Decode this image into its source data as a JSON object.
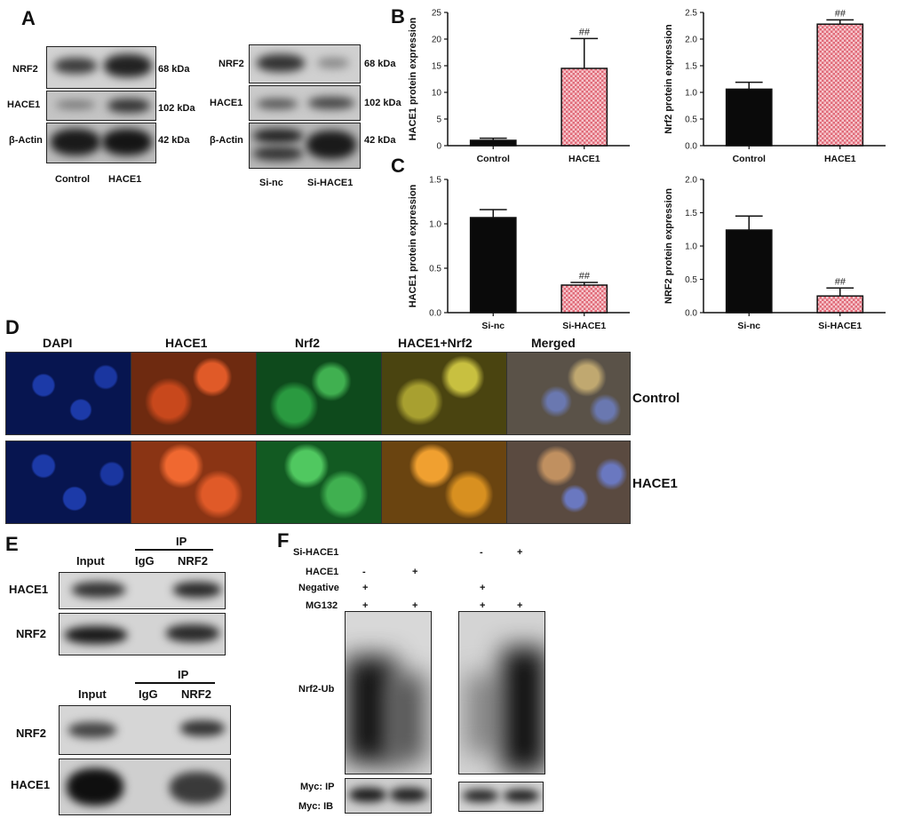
{
  "panels": {
    "a": "A",
    "b": "B",
    "c": "C",
    "d": "D",
    "e": "E",
    "f": "F"
  },
  "panel_a": {
    "left": {
      "rows": [
        "NRF2",
        "HACE1",
        "β-Actin"
      ],
      "sizes": [
        "68 kDa",
        "102 kDa",
        "42 kDa"
      ],
      "lanes": [
        "Control",
        "HACE1"
      ]
    },
    "right": {
      "rows": [
        "NRF2",
        "HACE1",
        "β-Actin"
      ],
      "sizes": [
        "68 kDa",
        "102 kDa",
        "42 kDa"
      ],
      "lanes": [
        "Si-nc",
        "Si-HACE1"
      ]
    }
  },
  "chart_data": [
    {
      "type": "bar",
      "categories": [
        "Control",
        "HACE1"
      ],
      "values": [
        1.0,
        14.5
      ],
      "errors": [
        0.4,
        5.6
      ],
      "annotations": [
        "",
        "##"
      ],
      "ylabel": "HACE1 protein expression",
      "ylim": [
        0,
        25
      ],
      "yticks": [
        "0",
        "5",
        "10",
        "15",
        "20",
        "25"
      ],
      "colors": [
        "#0a0a0a",
        "#e06a78"
      ]
    },
    {
      "type": "bar",
      "categories": [
        "Control",
        "HACE1"
      ],
      "values": [
        1.06,
        2.28
      ],
      "errors": [
        0.13,
        0.08
      ],
      "annotations": [
        "",
        "##"
      ],
      "ylabel": "Nrf2 protein expression",
      "ylim": [
        0,
        2.5
      ],
      "yticks": [
        "0.0",
        "0.5",
        "1.0",
        "1.5",
        "2.0",
        "2.5"
      ],
      "colors": [
        "#0a0a0a",
        "#e06a78"
      ]
    },
    {
      "type": "bar",
      "categories": [
        "Si-nc",
        "Si-HACE1"
      ],
      "values": [
        1.07,
        0.31
      ],
      "errors": [
        0.09,
        0.03
      ],
      "annotations": [
        "",
        "##"
      ],
      "ylabel": "HACE1 protein expression",
      "ylim": [
        0,
        1.5
      ],
      "yticks": [
        "0.0",
        "0.5",
        "1.0",
        "1.5"
      ],
      "colors": [
        "#0a0a0a",
        "#e06a78"
      ]
    },
    {
      "type": "bar",
      "categories": [
        "Si-nc",
        "Si-HACE1"
      ],
      "values": [
        1.24,
        0.25
      ],
      "errors": [
        0.21,
        0.12
      ],
      "annotations": [
        "",
        "##"
      ],
      "ylabel": "NRF2 protein expression",
      "ylim": [
        0,
        2.0
      ],
      "yticks": [
        "0.0",
        "0.5",
        "1.0",
        "1.5",
        "2.0"
      ],
      "colors": [
        "#0a0a0a",
        "#e06a78"
      ]
    }
  ],
  "panel_d": {
    "columns": [
      "DAPI",
      "HACE1",
      "Nrf2",
      "HACE1+Nrf2",
      "Merged"
    ],
    "rows": [
      "Control",
      "HACE1"
    ],
    "colors": {
      "dapi": "#0c1e78",
      "hace1": "#b8401a",
      "nrf2": "#1e8c34",
      "overlay": "#9a8a22",
      "merged": "#6a6a6a"
    }
  },
  "panel_e": {
    "top": {
      "ip": "IP",
      "lanes": [
        "Input",
        "IgG",
        "NRF2"
      ],
      "rows": [
        "HACE1",
        "NRF2"
      ]
    },
    "bottom": {
      "ip": "IP",
      "lanes": [
        "Input",
        "IgG",
        "NRF2"
      ],
      "rows": [
        "NRF2",
        "HACE1"
      ]
    }
  },
  "panel_f": {
    "conditions": [
      {
        "label": "Si-HACE1",
        "marks": [
          "",
          "",
          "-",
          "+"
        ]
      },
      {
        "label": "HACE1",
        "marks": [
          "-",
          "+",
          "",
          ""
        ]
      },
      {
        "label": "Negative",
        "marks": [
          "+",
          "",
          "+",
          ""
        ]
      },
      {
        "label": "MG132",
        "marks": [
          "+",
          "+",
          "+",
          "+"
        ]
      }
    ],
    "ub_label": "Nrf2-Ub",
    "myc_ip": "Myc: IP",
    "myc_ib": "Myc: IB"
  }
}
